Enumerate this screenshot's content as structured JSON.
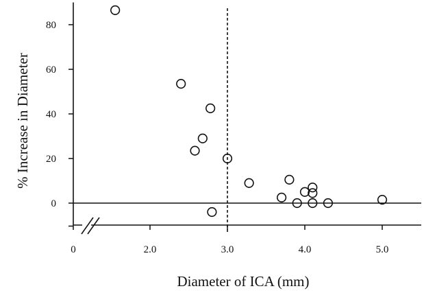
{
  "chart_data": {
    "type": "scatter",
    "title": "",
    "xlabel": "Diameter of ICA (mm)",
    "ylabel": "% Increase in Diameter",
    "x_ticks": [
      {
        "value": 0,
        "label": "0"
      },
      {
        "value": 2.0,
        "label": "2.0"
      },
      {
        "value": 3.0,
        "label": "3.0"
      },
      {
        "value": 4.0,
        "label": "4.0"
      },
      {
        "value": 5.0,
        "label": "5.0"
      }
    ],
    "y_ticks": [
      {
        "value": 0,
        "label": "0"
      },
      {
        "value": 20,
        "label": "20"
      },
      {
        "value": 40,
        "label": "40"
      },
      {
        "value": 60,
        "label": "60"
      },
      {
        "value": 80,
        "label": "80"
      }
    ],
    "xlim": [
      1.0,
      5.5
    ],
    "ylim": [
      -10,
      90
    ],
    "axis_break": "x",
    "reference_lines": [
      {
        "orientation": "vertical",
        "value": 3.0,
        "style": "dashed"
      },
      {
        "orientation": "horizontal",
        "value": 0,
        "style": "solid"
      }
    ],
    "marker": "open-circle",
    "points": [
      {
        "x": 1.55,
        "y": 86.5
      },
      {
        "x": 2.4,
        "y": 53.5
      },
      {
        "x": 2.78,
        "y": 42.5
      },
      {
        "x": 2.68,
        "y": 29
      },
      {
        "x": 2.58,
        "y": 23.5
      },
      {
        "x": 3.0,
        "y": 20
      },
      {
        "x": 2.8,
        "y": -4
      },
      {
        "x": 3.28,
        "y": 9
      },
      {
        "x": 3.8,
        "y": 10.5
      },
      {
        "x": 3.7,
        "y": 2.5
      },
      {
        "x": 3.9,
        "y": 0
      },
      {
        "x": 4.0,
        "y": 5
      },
      {
        "x": 4.1,
        "y": 7
      },
      {
        "x": 4.1,
        "y": 4.5
      },
      {
        "x": 4.1,
        "y": 0
      },
      {
        "x": 4.3,
        "y": 0
      },
      {
        "x": 5.0,
        "y": 1.5
      }
    ],
    "colors": {
      "ink": "#111111",
      "background": "#ffffff"
    }
  }
}
